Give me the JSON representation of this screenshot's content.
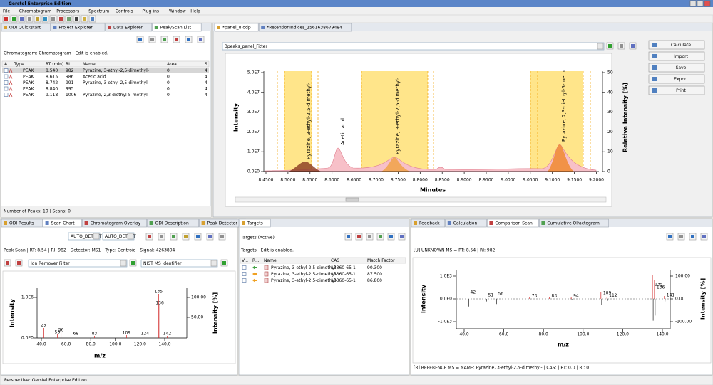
{
  "window": {
    "title": "Gerstel Enterprise Edition"
  },
  "menu": [
    "File",
    "Chromatogram",
    "Processors",
    "Spectrum",
    "Controls",
    "Plug-ins",
    "Window",
    "Help"
  ],
  "peak_panel": {
    "tabs": [
      "ODI Quickstart",
      "Project Explorer",
      "Data Explorer",
      "Peak/Scan List"
    ],
    "info": "Chromatogram: Chromatogram - Edit is enabled.",
    "columns": [
      "A...",
      "Type",
      "RT (min)",
      "RI",
      "Name",
      "Area",
      "S"
    ],
    "rows": [
      {
        "type": "PEAK",
        "rt": "8.540",
        "ri": "982",
        "name": "Pyrazine, 3-ethyl-2,5-dimethyl-",
        "area": "0",
        "s": "4"
      },
      {
        "type": "PEAK",
        "rt": "8.615",
        "ri": "986",
        "name": "Acetic acid",
        "area": "0",
        "s": "4"
      },
      {
        "type": "PEAK",
        "rt": "8.742",
        "ri": "991",
        "name": "Pyrazine, 3-ethyl-2,5-dimethyl-",
        "area": "0",
        "s": "4"
      },
      {
        "type": "PEAK",
        "rt": "8.840",
        "ri": "995",
        "area": "0",
        "s": "4"
      },
      {
        "type": "PEAK",
        "rt": "9.118",
        "ri": "1006",
        "name": "Pyrazine, 2,3-diethyl-5-methyl-",
        "area": "0",
        "s": "4"
      }
    ],
    "footer": "Number of Peaks: 10 | Scans: 0"
  },
  "editor": {
    "tabs": [
      "*panel_8.odp",
      "*RetentionIndices_1561638679484"
    ],
    "selector": "3peaks_panel_Fitter",
    "buttons": [
      "Calculate",
      "Import",
      "Save",
      "Export",
      "Print"
    ],
    "chart": {
      "ylabel": "Intensity",
      "y2label": "Relative Intensity [%]",
      "xlabel": "Minutes",
      "yticks": [
        "0.0E0",
        "1.0E7",
        "2.0E7",
        "3.0E7",
        "4.0E7",
        "5.0E7"
      ],
      "y2ticks": [
        "0",
        "10",
        "20",
        "30",
        "40",
        "50"
      ],
      "xticks": [
        "8.4500",
        "8.5000",
        "8.5500",
        "8.6000",
        "8.6500",
        "8.7000",
        "8.7500",
        "8.8000",
        "8.8500",
        "8.9000",
        "8.9500",
        "9.0000",
        "9.0500",
        "9.1000",
        "9.1500",
        "9.2000"
      ],
      "annotations": [
        "Pyrazine, 3-ethyl-2,5-dimethyl-",
        "Acetic acid",
        "Pyrazine, 3-ethyl-2,5-dimethyl-",
        "Pyrazine, 2,3-diethyl-5-meth"
      ]
    }
  },
  "scan_panel": {
    "tabs": [
      "ODI Results",
      "Scan Chart",
      "Chromatogram Overlay",
      "ODI Description",
      "Peak Detector"
    ],
    "detect": [
      "AUTO_DETECT",
      "AUTO_DETECT"
    ],
    "info": "Peak Scan | RT: 8.54 | RI: 982 | Detector: MS1 | Type: Centroid | Signal: 4263804",
    "filter": "Ion Remover Filter",
    "identifier": "NIST MS Identifier",
    "chart": {
      "ylabel": "Intensity",
      "y2label": "Intensity [%]",
      "xlabel": "m/z",
      "yticks": [
        "1.0E6",
        "0.0E0"
      ],
      "y2ticks": [
        "100.00",
        "50.00"
      ],
      "xticks": [
        "40.0",
        "60.0",
        "80.0",
        "100.0",
        "120.0",
        "140.0"
      ],
      "peak_labels": [
        "42",
        "53",
        "56",
        "68",
        "83",
        "109",
        "124",
        "135",
        "136",
        "142"
      ]
    }
  },
  "targets_panel": {
    "tabs": [
      "Targets"
    ],
    "status": "Targets (Active)",
    "info": "Targets - Edit is enabled.",
    "columns": [
      "V...",
      "R...",
      "Name",
      "CAS",
      "Match Factor"
    ],
    "rows": [
      {
        "name": "Pyrazine, 3-ethyl-2,5-dimethyl-",
        "cas": "13360-65-1",
        "match": "90.300"
      },
      {
        "name": "Pyrazine, 3-ethyl-2,5-dimethyl-",
        "cas": "13360-65-1",
        "match": "87.500"
      },
      {
        "name": "Pyrazine, 3-ethyl-2,5-dimethyl-",
        "cas": "13360-65-1",
        "match": "86.800"
      }
    ]
  },
  "comparison_panel": {
    "tabs": [
      "Feedback",
      "Calculation",
      "Comparison Scan",
      "Cumulative Olfactogram"
    ],
    "unknown": "[U] UNKNOWN MS = RT: 8.54 | RI: 982",
    "reference": "[R] REFERENCE MS = NAME: Pyrazine, 3-ethyl-2,5-dimethyl- | CAS:  | RT: 0.0 | RI: 0",
    "chart": {
      "ylabel": "Intensity",
      "y2label": "Intensity [%]",
      "xlabel": "m/z",
      "yticks": [
        "1.0E3",
        "0.0E0",
        "-1.0E3"
      ],
      "y2ticks": [
        "100.00",
        "0.00",
        "-100.00"
      ],
      "xticks": [
        "40.0",
        "60.0",
        "80.0",
        "100.0",
        "120.0",
        "140.0"
      ],
      "peak_labels": [
        "42",
        "51",
        "56",
        "73",
        "83",
        "94",
        "109",
        "112",
        "135",
        "136",
        "141"
      ]
    }
  },
  "status": "Perspective: Gerstel Enterprise Edition"
}
